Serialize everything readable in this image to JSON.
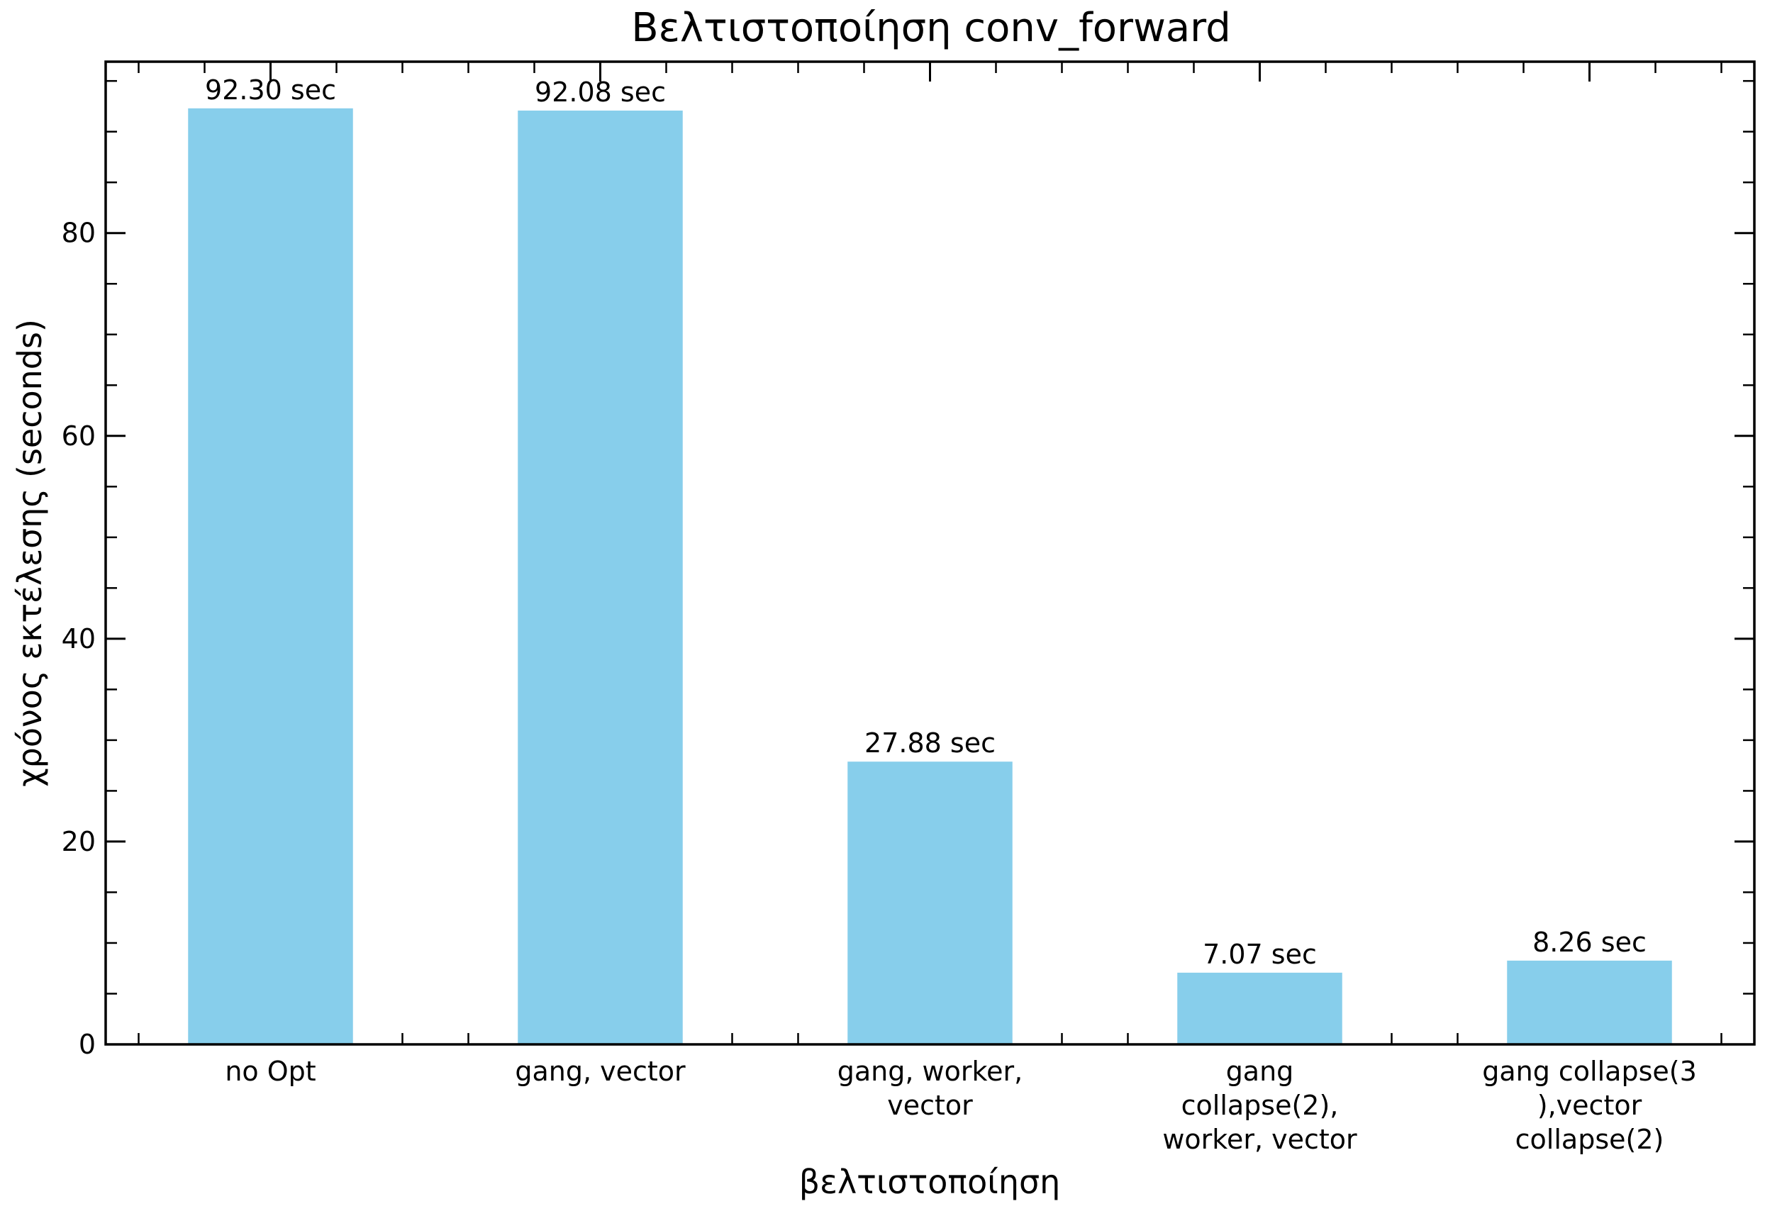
{
  "chart_data": {
    "type": "bar",
    "title": "Βελτιστοποίηση conv_forward",
    "xlabel": "βελτιστοποίηση",
    "ylabel": "χρόνος εκτέλεσης (seconds)",
    "categories": [
      [
        "no Opt"
      ],
      [
        "gang, vector"
      ],
      [
        "gang, worker,",
        "vector"
      ],
      [
        "gang",
        "collapse(2),",
        "worker, vector"
      ],
      [
        "gang collapse(3",
        "),vector",
        "collapse(2)"
      ]
    ],
    "values": [
      92.3,
      92.08,
      27.88,
      7.07,
      8.26
    ],
    "data_labels": [
      "92.30 sec",
      "92.08 sec",
      "27.88 sec",
      "7.07 sec",
      "8.26 sec"
    ],
    "ylim": [
      0,
      96.9
    ],
    "yticks": [
      0,
      20,
      40,
      60,
      80
    ],
    "grid": false,
    "bar_color": "#87CEEB"
  }
}
